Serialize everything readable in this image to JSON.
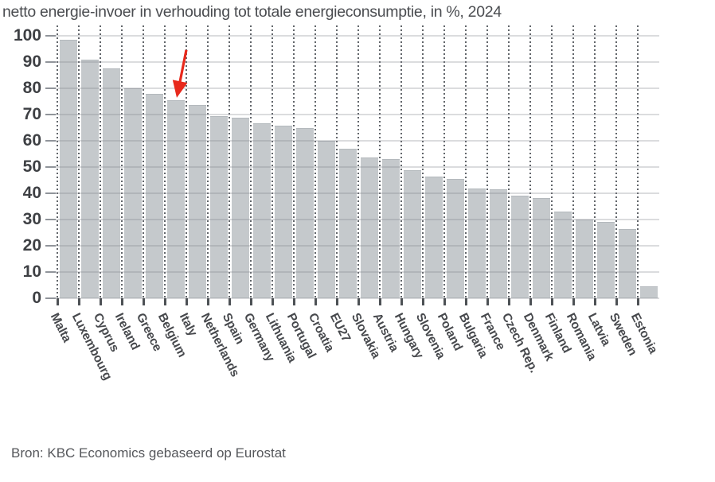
{
  "title": "netto energie-invoer in verhouding tot totale energieconsumptie, in %, 2024",
  "source": "Bron: KBC Economics gebaseerd op Eurostat",
  "colors": {
    "bar": "#c5c9cc",
    "arrow_red": "#e8291c",
    "axis_text": "#3e4044",
    "gridline": "#d9dbdd"
  },
  "chart_data": {
    "type": "bar",
    "title": "netto energie-invoer in verhouding tot totale energieconsumptie, in %, 2024",
    "xlabel": "",
    "ylabel": "",
    "ylim": [
      0,
      100
    ],
    "ytick_step": 10,
    "grid": true,
    "legend_position": "none",
    "categories": [
      "Malta",
      "Luxembourg",
      "Cyprus",
      "Ireland",
      "Greece",
      "Belgium",
      "Italy",
      "Netherlands",
      "Spain",
      "Germany",
      "Lithuania",
      "Portugal",
      "Croatia",
      "EU27",
      "Slovakia",
      "Austria",
      "Hungary",
      "Slovenia",
      "Poland",
      "Bulgaria",
      "France",
      "Czech Rep.",
      "Denmark",
      "Finland",
      "Romania",
      "Latvia",
      "Sweden",
      "Estonia"
    ],
    "values": [
      98.2,
      90.6,
      87.3,
      79.7,
      77.5,
      75.2,
      73.4,
      69.2,
      68.5,
      66.3,
      65.4,
      64.4,
      59.8,
      56.7,
      53.2,
      52.8,
      48.5,
      46.0,
      45.2,
      41.6,
      41.3,
      38.9,
      37.9,
      32.8,
      29.8,
      28.9,
      26.2,
      4.3
    ],
    "annotation": {
      "type": "arrow",
      "target": "Belgium",
      "color": "#e8291c"
    }
  }
}
